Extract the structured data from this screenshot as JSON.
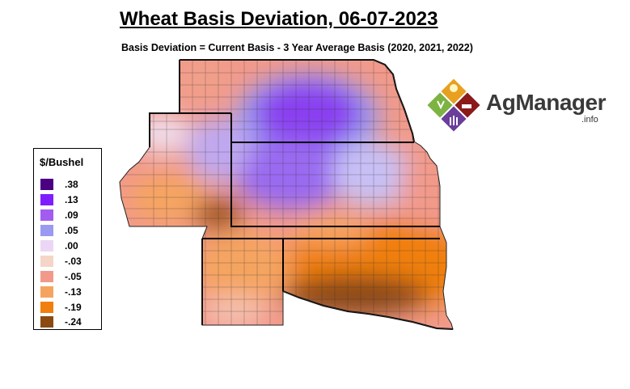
{
  "title": "Wheat Basis Deviation, 06-07-2023",
  "subtitle": "Basis Deviation = Current Basis - 3 Year Average Basis (2020, 2021, 2022)",
  "legend": {
    "title": "$/Bushel",
    "items": [
      {
        "label": ".38",
        "color": "#4b0082"
      },
      {
        "label": ".13",
        "color": "#7f1dff"
      },
      {
        "label": ".09",
        "color": "#a35cf0"
      },
      {
        "label": ".05",
        "color": "#9a9af0"
      },
      {
        "label": ".00",
        "color": "#ecd6f5"
      },
      {
        "label": "-.03",
        "color": "#f5d5c8"
      },
      {
        "label": "-.05",
        "color": "#f29a8a"
      },
      {
        "label": "-.13",
        "color": "#f5a460"
      },
      {
        "label": "-.19",
        "color": "#f07f0f"
      },
      {
        "label": "-.24",
        "color": "#8b4a12"
      }
    ]
  },
  "logo": {
    "name": "AgManager",
    "suffix": ".info",
    "colors": [
      "#e8a020",
      "#7cb342",
      "#8b1a1a",
      "#6a3d9a"
    ]
  }
}
